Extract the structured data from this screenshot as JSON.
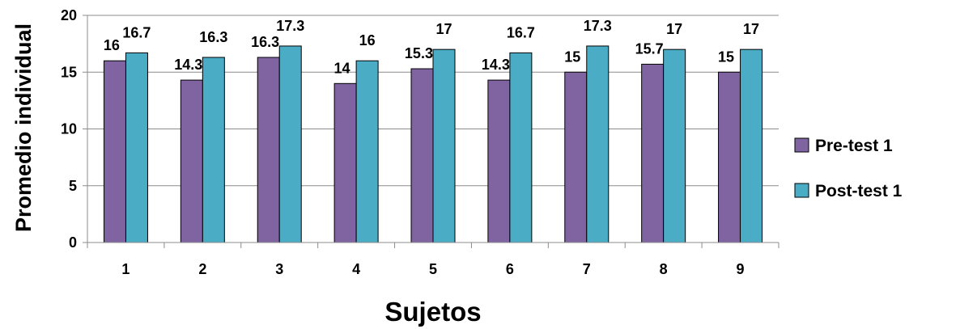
{
  "chart_data": {
    "type": "bar",
    "title": "",
    "xlabel": "Sujetos",
    "ylabel": "Promedio individual",
    "categories": [
      "1",
      "2",
      "3",
      "4",
      "5",
      "6",
      "7",
      "8",
      "9"
    ],
    "series": [
      {
        "name": "Pre-test 1",
        "color": "#8064A2",
        "values": [
          16,
          14.3,
          16.3,
          14,
          15.3,
          14.3,
          15,
          15.7,
          15
        ],
        "labels": [
          "16",
          "14.3",
          "16.3",
          "14",
          "15.3",
          "14.3",
          "15",
          "15.7",
          "15"
        ]
      },
      {
        "name": "Post-test 1",
        "color": "#4BACC6",
        "values": [
          16.7,
          16.3,
          17.3,
          16,
          17,
          16.7,
          17.3,
          17,
          17
        ],
        "labels": [
          "16.7",
          "16.3",
          "17.3",
          "16",
          "17",
          "16.7",
          "17.3",
          "17",
          "17"
        ]
      }
    ],
    "ylim": [
      0,
      20
    ],
    "yticks": [
      "0",
      "5",
      "10",
      "15",
      "20"
    ],
    "grid": true,
    "legend_position": "right"
  }
}
